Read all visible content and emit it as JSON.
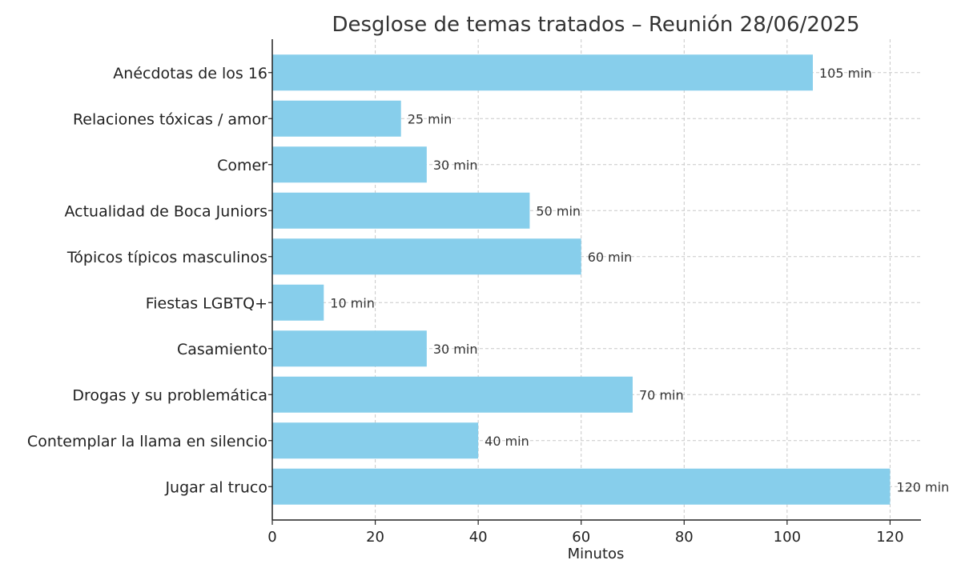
{
  "chart_data": {
    "type": "bar",
    "orientation": "horizontal",
    "title": "Desglose de temas tratados – Reunión 28/06/2025",
    "xlabel": "Minutos",
    "ylabel": "",
    "categories": [
      "Anécdotas de los 16",
      "Relaciones tóxicas / amor",
      "Comer",
      "Actualidad de Boca Juniors",
      "Tópicos típicos masculinos",
      "Fiestas LGBTQ+",
      "Casamiento",
      "Drogas y su problemática",
      "Contemplar la llama en silencio",
      "Jugar al truco"
    ],
    "values": [
      105,
      25,
      30,
      50,
      60,
      10,
      30,
      70,
      40,
      120
    ],
    "data_labels": [
      "105 min",
      "25 min",
      "30 min",
      "50 min",
      "60 min",
      "10 min",
      "30 min",
      "70 min",
      "40 min",
      "120 min"
    ],
    "xlim": [
      0,
      126
    ],
    "xticks": [
      0,
      20,
      40,
      60,
      80,
      100,
      120
    ],
    "xtick_labels": [
      "0",
      "20",
      "40",
      "60",
      "80",
      "100",
      "120"
    ],
    "grid": true,
    "legend": "none",
    "bar_color": "#87CEEB"
  }
}
